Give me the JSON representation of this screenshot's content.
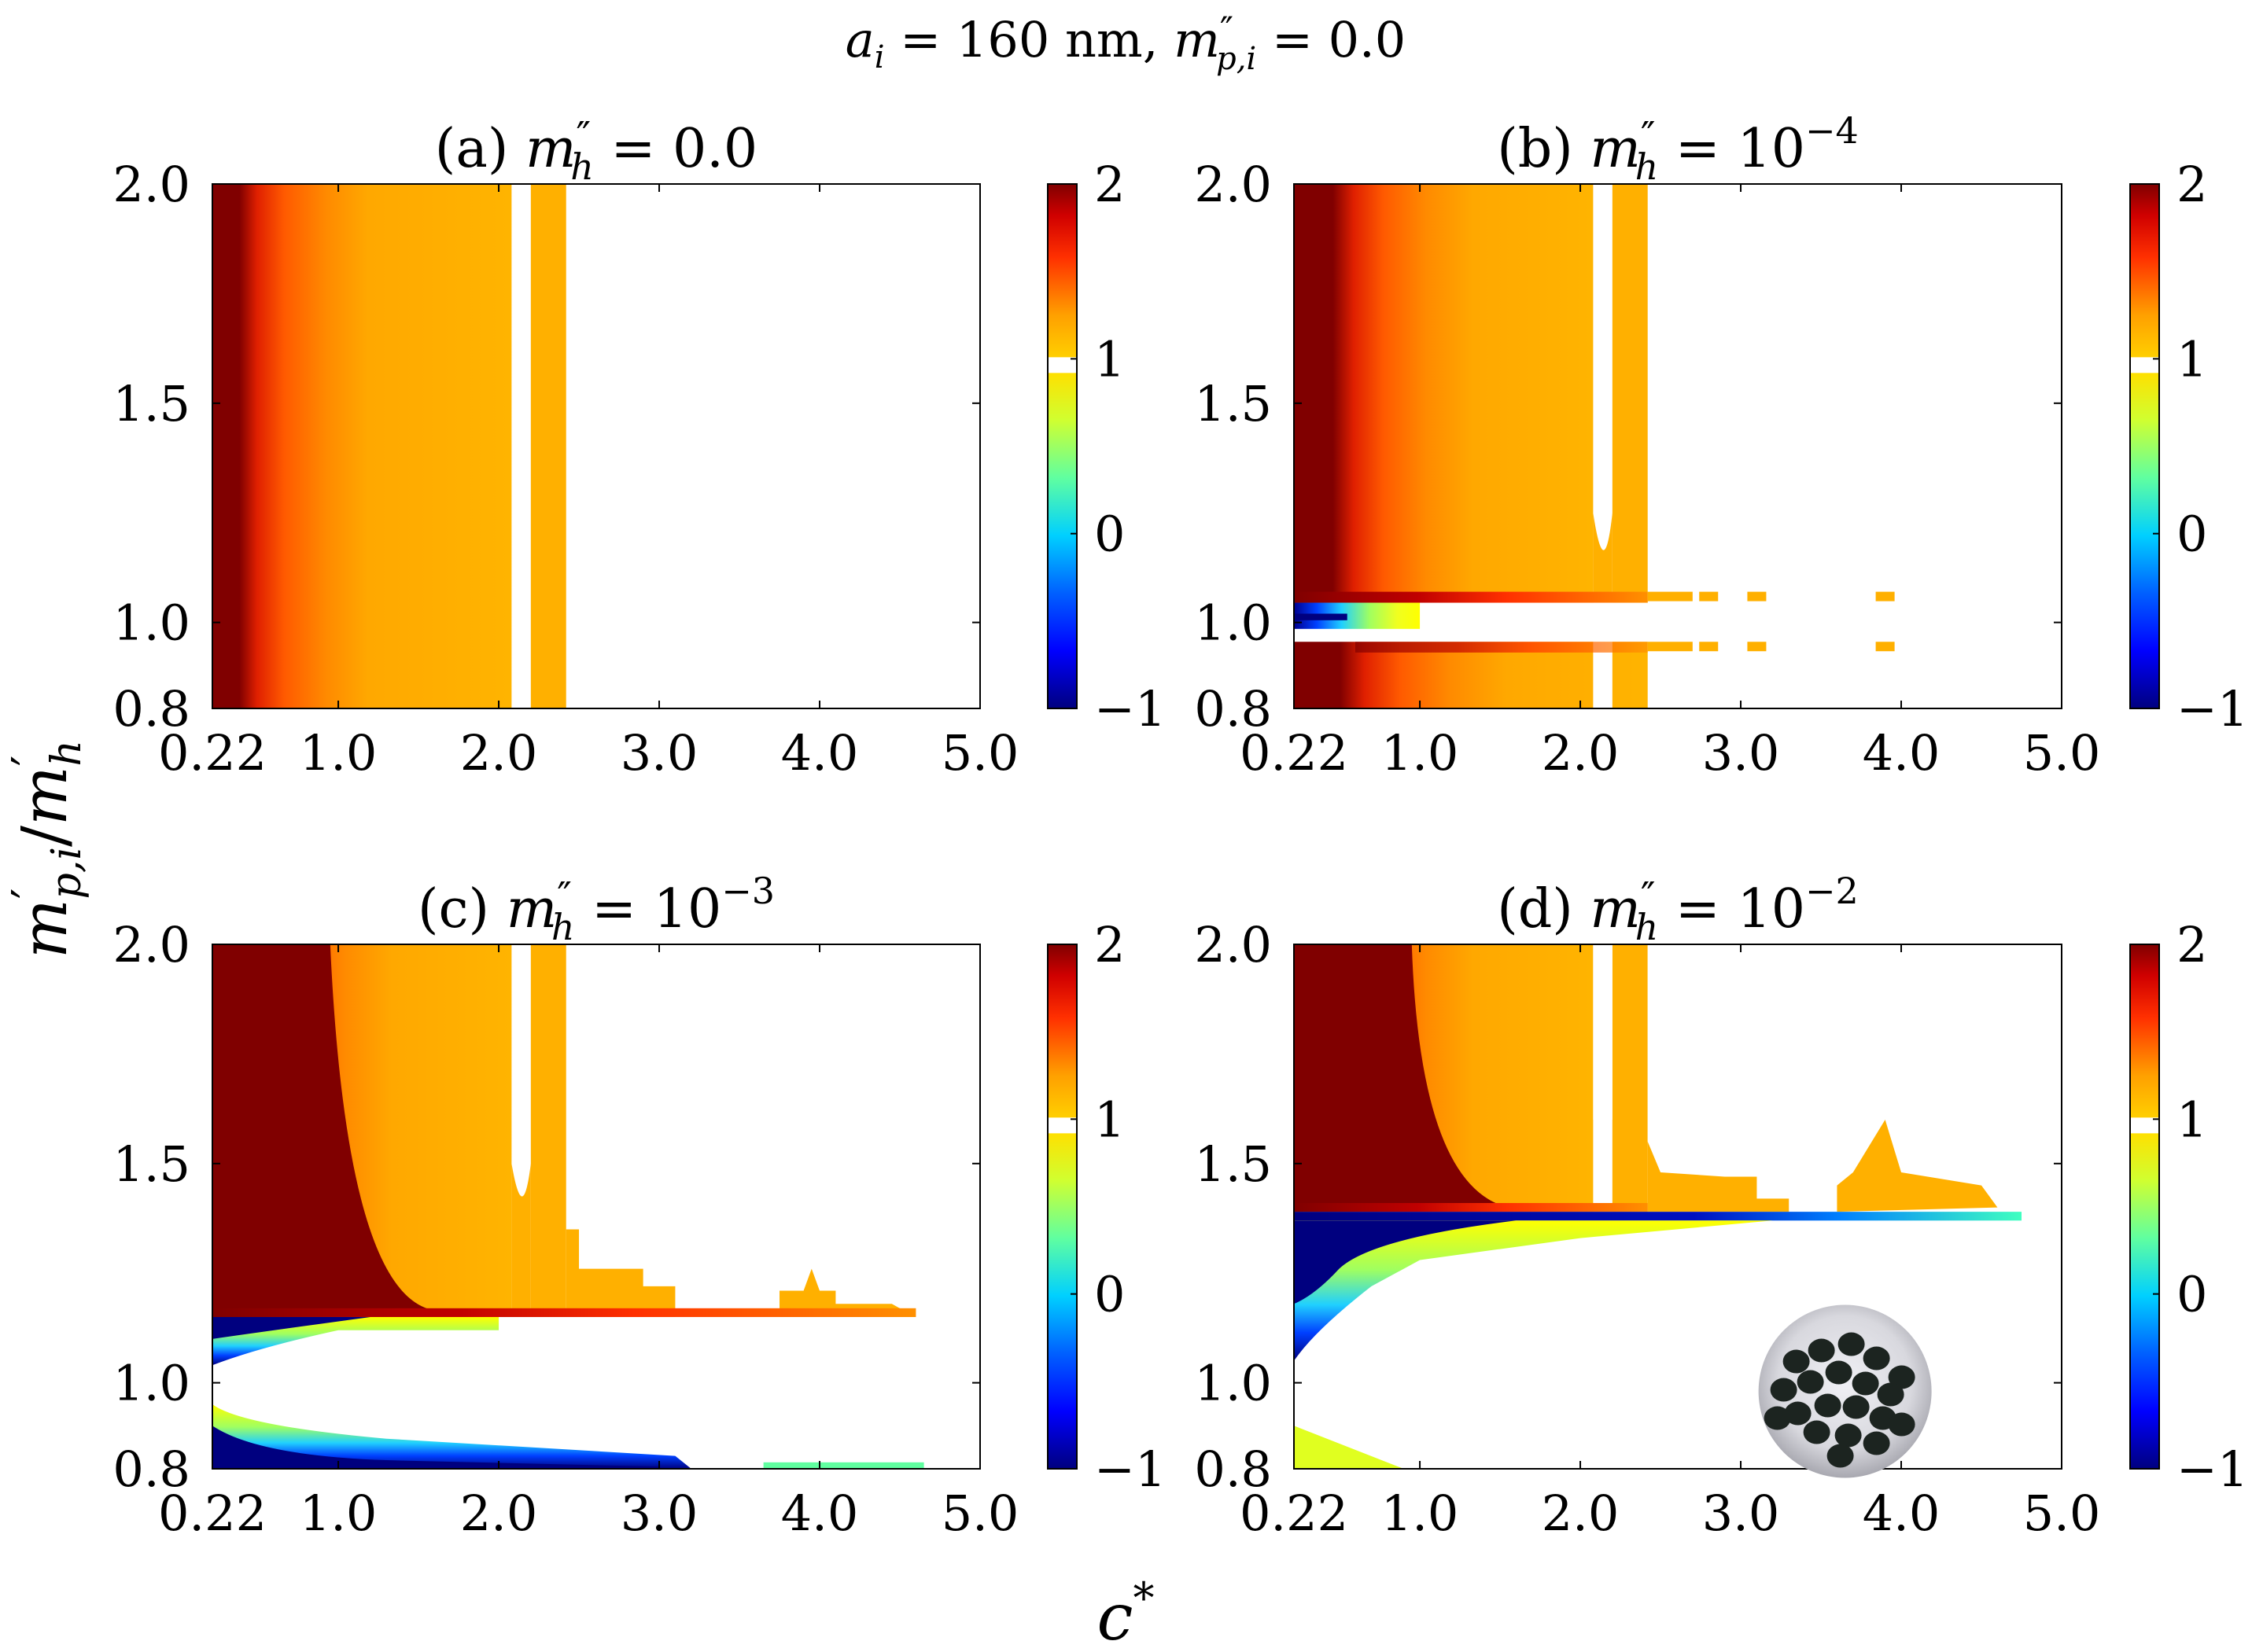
{
  "figure": {
    "suptitle": "a_i = 160 nm, m''_{p,i} = 0.0",
    "suptitle_parts": {
      "a": "a",
      "i": "i",
      "eq1": " = 160 nm, ",
      "m": "m",
      "pp": "″",
      "pi": "p,i",
      "eq2": " = 0.0"
    },
    "xlabel": "c*",
    "xlabel_parts": {
      "c": "c",
      "star": "*"
    },
    "ylabel": "m'_{p,i}/m'_h",
    "ylabel_parts": {
      "m1": "m",
      "p1": "′",
      "s1": "p,i",
      "slash": "/",
      "m2": "m",
      "p2": "′",
      "s2": "h"
    }
  },
  "colorbar": {
    "colormap": "jet",
    "range": [
      -1,
      2
    ],
    "ticks": [
      "−1",
      "0",
      "1",
      "2"
    ],
    "tick_values": [
      -1,
      0,
      1,
      2
    ],
    "gap_value": 1.0
  },
  "colors": {
    "dark_red": "#800000",
    "orange": "#ffb000",
    "navy": "#00007f",
    "axes": "#000000"
  },
  "chart_data": [
    {
      "id": "a",
      "type": "heatmap",
      "title": "(a) m''_h = 0.0",
      "title_parts": {
        "label": "(a) ",
        "m": "m",
        "pp": "″",
        "h": "h",
        "rhs": " = 0.0",
        "exp": ""
      },
      "x_ticks": [
        "0.22",
        "1.0",
        "2.0",
        "3.0",
        "4.0",
        "5.0"
      ],
      "x_tick_values": [
        0.22,
        1.0,
        2.0,
        3.0,
        4.0,
        5.0
      ],
      "y_ticks": [
        "0.8",
        "1.0",
        "1.5",
        "2.0"
      ],
      "y_tick_values": [
        0.8,
        1.0,
        1.5,
        2.0
      ],
      "xlim": [
        0.22,
        5.0
      ],
      "ylim": [
        0.8,
        2.0
      ],
      "upper_region": {
        "y_range": [
          0.8,
          2.0
        ],
        "band1_end_c": 2.08,
        "band2_c": [
          2.2,
          2.42
        ],
        "value_left": 2.0,
        "value_right": 1.1
      },
      "lower_region": null,
      "inset_photo": false
    },
    {
      "id": "b",
      "type": "heatmap",
      "title": "(b) m''_h = 10^-4",
      "title_parts": {
        "label": "(b) ",
        "m": "m",
        "pp": "″",
        "h": "h",
        "rhs": " = 10",
        "exp": "−4"
      },
      "x_ticks": [
        "0.22",
        "1.0",
        "2.0",
        "3.0",
        "4.0",
        "5.0"
      ],
      "x_tick_values": [
        0.22,
        1.0,
        2.0,
        3.0,
        4.0,
        5.0
      ],
      "y_ticks": [
        "0.8",
        "1.0",
        "1.5",
        "2.0"
      ],
      "y_tick_values": [
        0.8,
        1.0,
        1.5,
        2.0
      ],
      "xlim": [
        0.22,
        5.0
      ],
      "ylim": [
        0.8,
        2.0
      ],
      "upper_region": {
        "y_range": [
          1.045,
          2.0
        ],
        "band1_end_c": 2.08,
        "band2_c": [
          2.2,
          2.42
        ],
        "value_left": 2.0,
        "value_right": 1.1
      },
      "middle_region": {
        "y_range": [
          0.985,
          1.045
        ],
        "c_end": 1.0,
        "value_min": -1.0
      },
      "lower_region": {
        "y_range": [
          0.8,
          0.955
        ],
        "c_end": 2.42,
        "value_left": 2.0,
        "value_right": 1.1
      },
      "dashes_c": [
        2.8,
        3.1,
        3.9
      ],
      "inset_photo": false
    },
    {
      "id": "c",
      "type": "heatmap",
      "title": "(c) m''_h = 10^-3",
      "title_parts": {
        "label": "(c) ",
        "m": "m",
        "pp": "″",
        "h": "h",
        "rhs": " = 10",
        "exp": "−3"
      },
      "x_ticks": [
        "0.22",
        "1.0",
        "2.0",
        "3.0",
        "4.0",
        "5.0"
      ],
      "x_tick_values": [
        0.22,
        1.0,
        2.0,
        3.0,
        4.0,
        5.0
      ],
      "y_ticks": [
        "0.8",
        "1.0",
        "1.5",
        "2.0"
      ],
      "y_tick_values": [
        0.8,
        1.0,
        1.5,
        2.0
      ],
      "xlim": [
        0.22,
        5.0
      ],
      "ylim": [
        0.8,
        2.0
      ],
      "upper_region": {
        "y_range": [
          1.15,
          2.0
        ],
        "band1_end_c": 2.08,
        "band2_c": [
          2.2,
          2.42
        ],
        "value_left": 2.0,
        "value_right": 1.1,
        "tail_c_end": 4.6
      },
      "lower_region": {
        "y_range": [
          0.8,
          1.15
        ],
        "c_end": 4.6,
        "value_min": -1.0
      },
      "inset_photo": false
    },
    {
      "id": "d",
      "type": "heatmap",
      "title": "(d) m''_h = 10^-2",
      "title_parts": {
        "label": "(d) ",
        "m": "m",
        "pp": "″",
        "h": "h",
        "rhs": " = 10",
        "exp": "−2"
      },
      "x_ticks": [
        "0.22",
        "1.0",
        "2.0",
        "3.0",
        "4.0",
        "5.0"
      ],
      "x_tick_values": [
        0.22,
        1.0,
        2.0,
        3.0,
        4.0,
        5.0
      ],
      "y_ticks": [
        "0.8",
        "1.0",
        "1.5",
        "2.0"
      ],
      "y_tick_values": [
        0.8,
        1.0,
        1.5,
        2.0
      ],
      "xlim": [
        0.22,
        5.0
      ],
      "ylim": [
        0.8,
        2.0
      ],
      "upper_region": {
        "y_range": [
          1.39,
          2.0
        ],
        "band1_end_c": 2.08,
        "band2_c": [
          2.2,
          2.42
        ],
        "value_left": 2.0,
        "value_right": 1.1,
        "tail_c_end": 4.6
      },
      "lower_region": {
        "y_range": [
          0.8,
          1.39
        ],
        "c_end": 4.75,
        "value_min": -1.0
      },
      "inset_photo": true
    }
  ]
}
